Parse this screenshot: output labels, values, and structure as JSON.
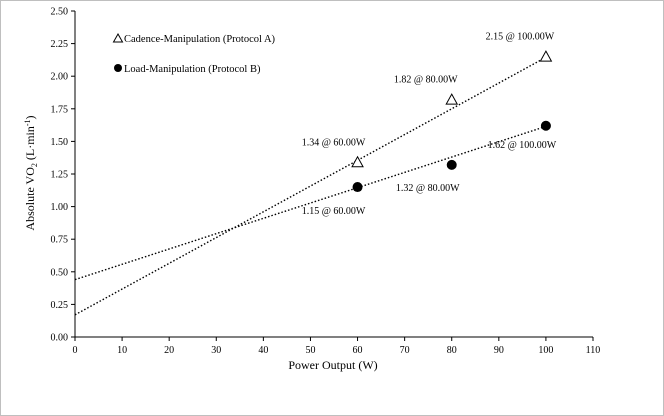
{
  "chart_data": {
    "type": "scatter",
    "xlabel": "Power Output (W)",
    "ylabel_main": "Absolute VO",
    "ylabel_sub": "2",
    "ylabel_unit_start": " (L·min",
    "ylabel_unit_sup": "-1",
    "ylabel_unit_end": ")",
    "xlim": [
      0,
      110
    ],
    "ylim": [
      0,
      2.5
    ],
    "x_ticks": [
      0,
      10,
      20,
      30,
      40,
      50,
      60,
      70,
      80,
      90,
      100,
      110
    ],
    "x_tick_labels": [
      "0",
      "10",
      "20",
      "30",
      "40",
      "50",
      "60",
      "70",
      "80",
      "90",
      "100",
      "110"
    ],
    "y_ticks": [
      0,
      0.25,
      0.5,
      0.75,
      1.0,
      1.25,
      1.5,
      1.75,
      2.0,
      2.25,
      2.5
    ],
    "y_tick_labels": [
      "0.00",
      "0.25",
      "0.50",
      "0.75",
      "1.00",
      "1.25",
      "1.50",
      "1.75",
      "2.00",
      "2.25",
      "2.50"
    ],
    "grid": false,
    "legend_placement": "top-left",
    "series": [
      {
        "name": "Cadence-Manipulation (Protocol A)",
        "marker": "triangle-open",
        "color": "#000000",
        "x": [
          60,
          80,
          100
        ],
        "y": [
          1.34,
          1.82,
          2.15
        ],
        "labels": [
          "1.34 @ 60.00W",
          "1.82 @ 80.00W",
          "2.15 @ 100.00W"
        ],
        "trend": {
          "slope": 0.01975,
          "intercept": 0.17
        }
      },
      {
        "name": "Load-Manipulation (Protocol B)",
        "marker": "circle-filled",
        "color": "#000000",
        "x": [
          60,
          80,
          100
        ],
        "y": [
          1.15,
          1.32,
          1.62
        ],
        "labels": [
          "1.15 @ 60.00W",
          "1.32 @ 80.00W",
          "1.62 @ 100.00W"
        ],
        "trend": {
          "slope": 0.01175,
          "intercept": 0.44
        }
      }
    ]
  }
}
